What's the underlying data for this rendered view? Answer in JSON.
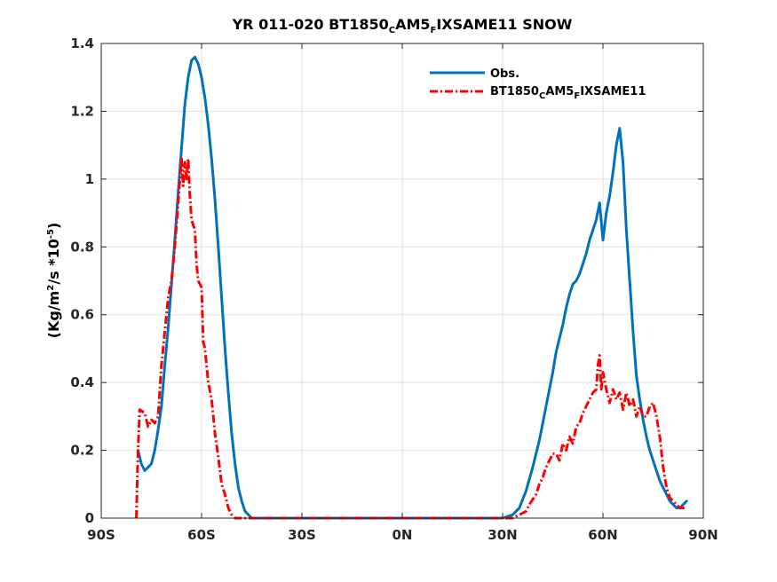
{
  "chart_data": {
    "type": "line",
    "title": {
      "base": "YR 011-020 BT1850",
      "sub1": "C",
      "mid": "AM5",
      "sub2": "F",
      "end": "IXSAME11 SNOW"
    },
    "ylabel": {
      "base": "(Kg/m",
      "sup1": "2",
      "mid": "/s *10",
      "sup2": "-5",
      "end": ")"
    },
    "xlabel": "",
    "xlim": [
      -90,
      90
    ],
    "ylim": [
      0,
      1.4
    ],
    "grid": true,
    "legend_position": "top-right",
    "x_ticks": [
      {
        "value": -90,
        "label": "90S"
      },
      {
        "value": -60,
        "label": "60S"
      },
      {
        "value": -30,
        "label": "30S"
      },
      {
        "value": 0,
        "label": "0N"
      },
      {
        "value": 30,
        "label": "30N"
      },
      {
        "value": 60,
        "label": "60N"
      },
      {
        "value": 90,
        "label": "90N"
      }
    ],
    "y_ticks": [
      {
        "value": 0,
        "label": "0"
      },
      {
        "value": 0.2,
        "label": "0.2"
      },
      {
        "value": 0.4,
        "label": "0.4"
      },
      {
        "value": 0.6,
        "label": "0.6"
      },
      {
        "value": 0.8,
        "label": "0.8"
      },
      {
        "value": 1.0,
        "label": "1"
      },
      {
        "value": 1.2,
        "label": "1.2"
      },
      {
        "value": 1.4,
        "label": "1.4"
      }
    ],
    "series": [
      {
        "name": "Obs.",
        "color": "#0072BD",
        "style": "solid",
        "points": [
          [
            -79,
            0.2
          ],
          [
            -78,
            0.16
          ],
          [
            -77,
            0.14
          ],
          [
            -76,
            0.15
          ],
          [
            -75,
            0.16
          ],
          [
            -74,
            0.2
          ],
          [
            -73,
            0.26
          ],
          [
            -72,
            0.33
          ],
          [
            -71,
            0.45
          ],
          [
            -70,
            0.56
          ],
          [
            -69,
            0.69
          ],
          [
            -68,
            0.82
          ],
          [
            -67,
            0.96
          ],
          [
            -66,
            1.09
          ],
          [
            -65,
            1.22
          ],
          [
            -64,
            1.3
          ],
          [
            -63,
            1.35
          ],
          [
            -62,
            1.36
          ],
          [
            -61,
            1.34
          ],
          [
            -60,
            1.3
          ],
          [
            -59,
            1.24
          ],
          [
            -58,
            1.16
          ],
          [
            -57,
            1.06
          ],
          [
            -56,
            0.94
          ],
          [
            -55,
            0.8
          ],
          [
            -54,
            0.65
          ],
          [
            -53,
            0.5
          ],
          [
            -52,
            0.37
          ],
          [
            -51,
            0.25
          ],
          [
            -50,
            0.16
          ],
          [
            -49,
            0.09
          ],
          [
            -48,
            0.05
          ],
          [
            -47,
            0.02
          ],
          [
            -46,
            0.01
          ],
          [
            -45,
            0.0
          ],
          [
            0,
            0.0
          ],
          [
            30,
            0.0
          ],
          [
            33,
            0.01
          ],
          [
            35,
            0.03
          ],
          [
            37,
            0.08
          ],
          [
            39,
            0.15
          ],
          [
            41,
            0.23
          ],
          [
            43,
            0.33
          ],
          [
            44,
            0.38
          ],
          [
            45,
            0.43
          ],
          [
            46,
            0.49
          ],
          [
            47,
            0.53
          ],
          [
            48,
            0.57
          ],
          [
            49,
            0.62
          ],
          [
            50,
            0.66
          ],
          [
            51,
            0.69
          ],
          [
            52,
            0.7
          ],
          [
            53,
            0.72
          ],
          [
            54,
            0.75
          ],
          [
            55,
            0.78
          ],
          [
            56,
            0.82
          ],
          [
            57,
            0.85
          ],
          [
            58,
            0.88
          ],
          [
            59,
            0.93
          ],
          [
            60,
            0.82
          ],
          [
            61,
            0.9
          ],
          [
            62,
            0.95
          ],
          [
            63,
            1.02
          ],
          [
            64,
            1.1
          ],
          [
            65,
            1.15
          ],
          [
            66,
            1.05
          ],
          [
            67,
            0.85
          ],
          [
            68,
            0.7
          ],
          [
            69,
            0.55
          ],
          [
            70,
            0.42
          ],
          [
            71,
            0.35
          ],
          [
            72,
            0.29
          ],
          [
            73,
            0.24
          ],
          [
            74,
            0.2
          ],
          [
            75,
            0.17
          ],
          [
            76,
            0.14
          ],
          [
            77,
            0.11
          ],
          [
            78,
            0.09
          ],
          [
            79,
            0.07
          ],
          [
            80,
            0.05
          ],
          [
            81,
            0.04
          ],
          [
            82,
            0.03
          ],
          [
            83,
            0.03
          ],
          [
            84,
            0.04
          ],
          [
            85,
            0.05
          ]
        ]
      },
      {
        "name": "BT1850CAM5FIXSAME11",
        "legend_label": {
          "base": "BT1850",
          "sub1": "C",
          "mid": "AM5",
          "sub2": "F",
          "end": "IXSAME11"
        },
        "color": "#FF0000",
        "style": "dash-dot",
        "points": [
          [
            -79.5,
            0.0
          ],
          [
            -79,
            0.2
          ],
          [
            -78.5,
            0.32
          ],
          [
            -77,
            0.31
          ],
          [
            -76,
            0.27
          ],
          [
            -75,
            0.29
          ],
          [
            -74,
            0.28
          ],
          [
            -73,
            0.3
          ],
          [
            -72,
            0.45
          ],
          [
            -71,
            0.55
          ],
          [
            -70,
            0.65
          ],
          [
            -69,
            0.7
          ],
          [
            -68,
            0.8
          ],
          [
            -67,
            0.93
          ],
          [
            -66,
            1.06
          ],
          [
            -65.5,
            0.98
          ],
          [
            -65,
            1.05
          ],
          [
            -64.5,
            1.0
          ],
          [
            -64,
            1.06
          ],
          [
            -63.5,
            0.95
          ],
          [
            -63,
            0.88
          ],
          [
            -62,
            0.85
          ],
          [
            -61.5,
            0.75
          ],
          [
            -61,
            0.7
          ],
          [
            -60,
            0.68
          ],
          [
            -59.5,
            0.52
          ],
          [
            -59,
            0.5
          ],
          [
            -58,
            0.4
          ],
          [
            -57,
            0.35
          ],
          [
            -56,
            0.25
          ],
          [
            -55,
            0.18
          ],
          [
            -54,
            0.1
          ],
          [
            -53,
            0.07
          ],
          [
            -52,
            0.03
          ],
          [
            -51,
            0.01
          ],
          [
            -50,
            0.0
          ],
          [
            0,
            0.0
          ],
          [
            30,
            0.0
          ],
          [
            33,
            0.0
          ],
          [
            35,
            0.01
          ],
          [
            37,
            0.02
          ],
          [
            38,
            0.04
          ],
          [
            40,
            0.07
          ],
          [
            41,
            0.1
          ],
          [
            42,
            0.12
          ],
          [
            43,
            0.15
          ],
          [
            44,
            0.17
          ],
          [
            45,
            0.19
          ],
          [
            46,
            0.19
          ],
          [
            47,
            0.17
          ],
          [
            48,
            0.22
          ],
          [
            49,
            0.2
          ],
          [
            50,
            0.24
          ],
          [
            51,
            0.22
          ],
          [
            52,
            0.27
          ],
          [
            53,
            0.28
          ],
          [
            54,
            0.31
          ],
          [
            55,
            0.33
          ],
          [
            56,
            0.35
          ],
          [
            57,
            0.37
          ],
          [
            58,
            0.38
          ],
          [
            58.5,
            0.45
          ],
          [
            59,
            0.48
          ],
          [
            59.5,
            0.38
          ],
          [
            60,
            0.43
          ],
          [
            61,
            0.38
          ],
          [
            62,
            0.34
          ],
          [
            63,
            0.38
          ],
          [
            64,
            0.35
          ],
          [
            65,
            0.37
          ],
          [
            66,
            0.32
          ],
          [
            67,
            0.37
          ],
          [
            68,
            0.33
          ],
          [
            69,
            0.35
          ],
          [
            70,
            0.3
          ],
          [
            71,
            0.33
          ],
          [
            72,
            0.3
          ],
          [
            73,
            0.3
          ],
          [
            74,
            0.33
          ],
          [
            75,
            0.34
          ],
          [
            76,
            0.3
          ],
          [
            77,
            0.24
          ],
          [
            78,
            0.15
          ],
          [
            79,
            0.09
          ],
          [
            80,
            0.06
          ],
          [
            81,
            0.05
          ],
          [
            82,
            0.04
          ],
          [
            83,
            0.03
          ],
          [
            84,
            0.03
          ],
          [
            85,
            0.03
          ]
        ]
      }
    ]
  }
}
